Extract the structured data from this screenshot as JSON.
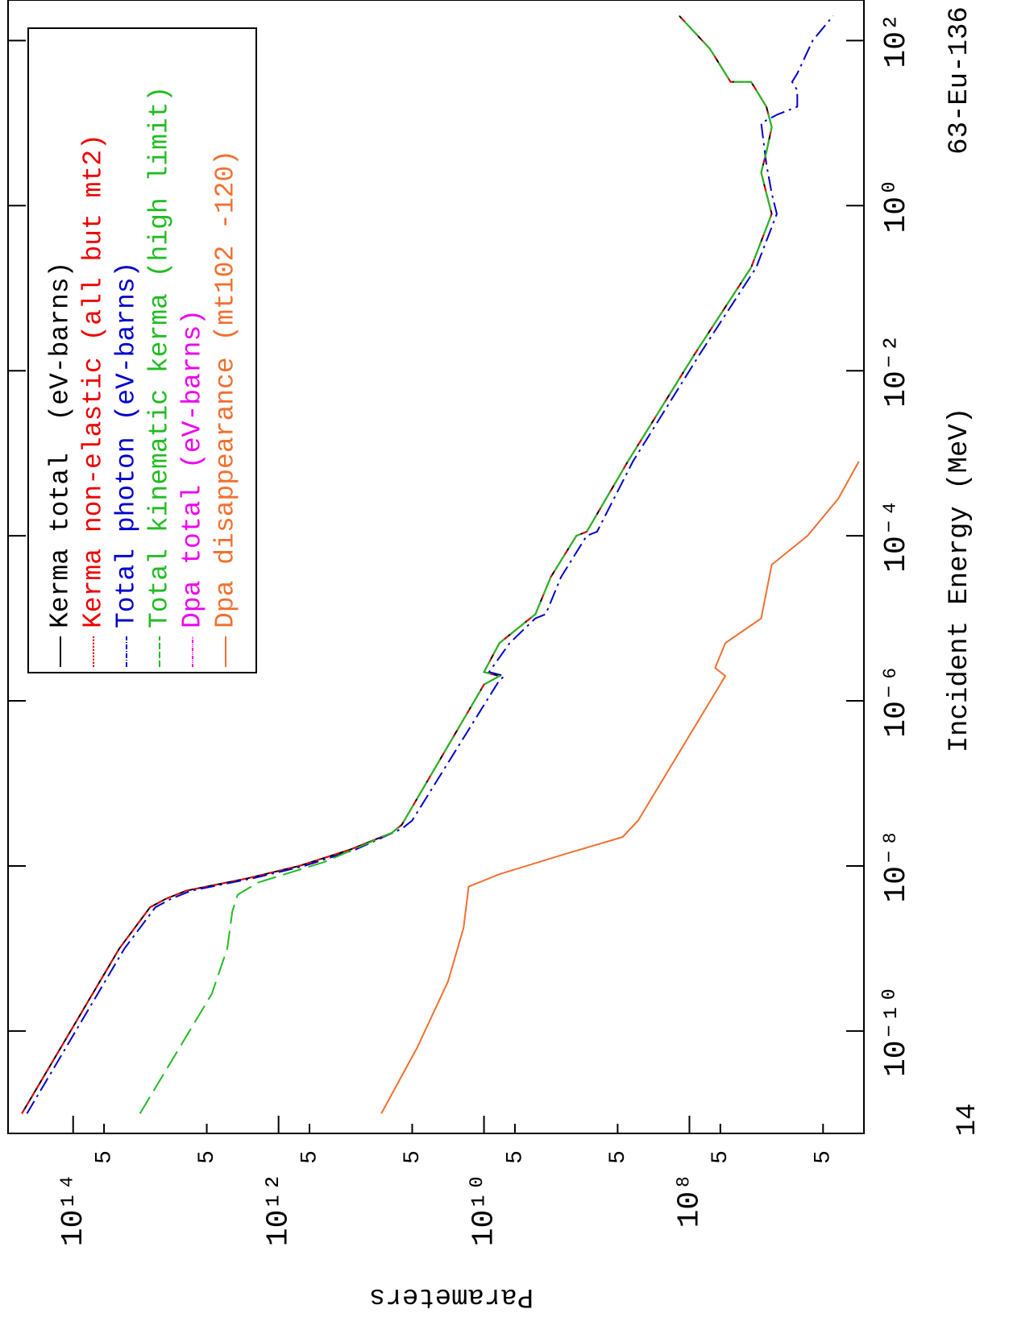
{
  "chart_data": {
    "type": "line",
    "xlabel": "Incident Energy (MeV)",
    "ylabel": "Parameters",
    "annotations": [
      "63-Eu-136",
      "14"
    ],
    "xscale": "log",
    "yscale": "log",
    "xlim": [
      5.75e-12,
      310
    ],
    "ylim": [
      2000000.0,
      430000000000000.0
    ],
    "xticks": [
      {
        "value": 100,
        "label": "10²"
      },
      {
        "value": 1,
        "label": "10⁰"
      },
      {
        "value": 0.01,
        "label": "10⁻²"
      },
      {
        "value": 0.0001,
        "label": "10⁻⁴"
      },
      {
        "value": 1e-06,
        "label": "10⁻⁶"
      },
      {
        "value": 1e-08,
        "label": "10⁻⁸"
      },
      {
        "value": 1e-10,
        "label": "10⁻¹⁰"
      }
    ],
    "yticks": [
      {
        "value": 100000000000000.0,
        "label": "10¹⁴"
      },
      {
        "value": 50000000000000.0,
        "label": "5"
      },
      {
        "value": 5000000000000.0,
        "label": "5"
      },
      {
        "value": 1000000000000.0,
        "label": "10¹²"
      },
      {
        "value": 500000000000.0,
        "label": "5"
      },
      {
        "value": 50000000000.0,
        "label": "5"
      },
      {
        "value": 10000000000.0,
        "label": "10¹⁰"
      },
      {
        "value": 5000000000.0,
        "label": "5"
      },
      {
        "value": 500000000.0,
        "label": "5"
      },
      {
        "value": 100000000.0,
        "label": "10⁸"
      },
      {
        "value": 50000000.0,
        "label": "5"
      },
      {
        "value": 5000000.0,
        "label": "5"
      }
    ],
    "legend": "upper right",
    "series": [
      {
        "name": "Kerma total  (eV-barns)",
        "color": "#000000",
        "dash": "none",
        "x": [
          1e-11,
          1e-09,
          3.16e-09,
          3.98e-09,
          5.01e-09,
          7.08e-09,
          1e-08,
          1.58e-08,
          2.51e-08,
          3.16e-08,
          1.58e-06,
          2e-06,
          2.24e-06,
          5.01e-06,
          1e-05,
          1.12e-05,
          3.16e-05,
          0.0001,
          0.000112,
          0.000794,
          0.0158,
          0.178,
          0.794,
          1.41,
          2.51,
          4.47,
          8.91,
          15.8,
          31.6,
          31.6,
          79.4,
          200
        ],
        "values": [
          316000000000000.0,
          35500000000000.0,
          17800000000000.0,
          12600000000000.0,
          7940000000000.0,
          2000000000000.0,
          631000000000.0,
          200000000000.0,
          79400000000.0,
          63100000000.0,
          10000000000.0,
          7080000000.0,
          10000000000.0,
          7080000000.0,
          3550000000.0,
          3160000000.0,
          2240000000.0,
          1260000000.0,
          1000000000.0,
          398000000.0,
          89100000.0,
          25100000.0,
          15800000.0,
          17800000.0,
          20000000.0,
          17800000.0,
          15800000.0,
          17800000.0,
          25100000.0,
          39800000.0,
          63100000.0,
          126000000.0
        ]
      },
      {
        "name": "Kerma non-elastic (all but mt2)",
        "color": "#ee0000",
        "dash": "7,5",
        "x": [
          1e-11,
          1e-09,
          3.16e-09,
          3.98e-09,
          5.01e-09,
          7.08e-09,
          1e-08,
          1.58e-08,
          2.51e-08,
          3.16e-08,
          1.58e-06,
          2e-06,
          2.24e-06,
          5.01e-06,
          1e-05,
          1.12e-05,
          3.16e-05,
          0.0001,
          0.000112,
          0.000794,
          0.0158,
          0.178,
          0.794,
          1.41,
          2.51,
          4.47,
          8.91,
          15.8,
          31.6,
          31.6,
          79.4,
          200
        ],
        "values": [
          316000000000000.0,
          35500000000000.0,
          17800000000000.0,
          12600000000000.0,
          7940000000000.0,
          2000000000000.0,
          631000000000.0,
          200000000000.0,
          79400000000.0,
          63100000000.0,
          10000000000.0,
          7080000000.0,
          10000000000.0,
          7080000000.0,
          3550000000.0,
          3160000000.0,
          2240000000.0,
          1260000000.0,
          1000000000.0,
          398000000.0,
          89100000.0,
          25100000.0,
          15800000.0,
          17800000.0,
          20000000.0,
          17800000.0,
          15800000.0,
          17800000.0,
          25100000.0,
          39800000.0,
          63100000.0,
          126000000.0
        ]
      },
      {
        "name": "Total photon (eV-barns)",
        "color": "#0000cc",
        "dash": "18,6,3,6",
        "x": [
          1e-11,
          1e-09,
          3.16e-09,
          3.98e-09,
          5.01e-09,
          7.08e-09,
          1e-08,
          1.58e-08,
          2.82e-08,
          3.55e-08,
          1.78e-06,
          2e-06,
          2.24e-06,
          5.01e-06,
          1e-05,
          1.12e-05,
          3.16e-05,
          0.0001,
          0.000112,
          0.000794,
          0.0158,
          0.178,
          0.794,
          1.41,
          3.16,
          10,
          12.6,
          15.8,
          25.1,
          31.6,
          39.8,
          100,
          200
        ],
        "values": [
          282000000000000.0,
          31600000000000.0,
          15800000000000.0,
          11200000000000.0,
          7080000000000.0,
          1780000000000.0,
          562000000000.0,
          178000000000.0,
          63100000000.0,
          50100000000.0,
          7080000000.0,
          6310000000.0,
          8910000000.0,
          5620000000.0,
          3160000000.0,
          2510000000.0,
          1780000000.0,
          1000000000.0,
          794000000.0,
          355000000.0,
          79400000.0,
          22400000.0,
          14100000.0,
          15800000.0,
          17800000.0,
          20000000.0,
          14100000.0,
          8910000.0,
          8910000.0,
          10000000.0,
          8910000.0,
          6310000.0,
          3980000.0
        ]
      },
      {
        "name": "Total kinematic kerma (high limit)",
        "color": "#22bb22",
        "dash": "24,9",
        "x": [
          1e-11,
          2.82e-10,
          1e-09,
          2.82e-09,
          4.47e-09,
          6.31e-09,
          1.12e-08,
          2.51e-08,
          3.16e-08,
          1.58e-06,
          2e-06,
          2.24e-06,
          5.01e-06,
          1e-05,
          1.12e-05,
          3.16e-05,
          0.0001,
          0.000112,
          0.000794,
          0.0158,
          0.178,
          0.794,
          1.41,
          2.51,
          4.47,
          8.91,
          15.8,
          31.6,
          31.6,
          79.4,
          200
        ],
        "values": [
          22400000000000.0,
          4470000000000.0,
          3160000000000.0,
          2820000000000.0,
          2510000000000.0,
          1580000000000.0,
          355000000000.0,
          79400000000.0,
          63100000000.0,
          10000000000.0,
          7080000000.0,
          10000000000.0,
          7080000000.0,
          3550000000.0,
          3160000000.0,
          2240000000.0,
          1260000000.0,
          1000000000.0,
          398000000.0,
          89100000.0,
          25100000.0,
          15800000.0,
          17800000.0,
          20000000.0,
          17800000.0,
          15800000.0,
          17800000.0,
          25100000.0,
          39800000.0,
          63100000.0,
          126000000.0
        ]
      },
      {
        "name": "Dpa total (eV-barns)",
        "color": "#ee00ee",
        "dash": "12,4,3,4,3,4",
        "x": [],
        "values": []
      },
      {
        "name": "Dpa disappearance (mt102 -120)",
        "color": "#f07030",
        "dash": "none",
        "x": [
          1e-11,
          6.31e-11,
          3.98e-10,
          1.78e-09,
          5.62e-09,
          7.94e-09,
          1.41e-08,
          2.24e-08,
          3.55e-08,
          2e-06,
          2.51e-06,
          5.01e-06,
          1e-05,
          4.47e-05,
          0.0001,
          0.000282,
          0.000794
        ],
        "values": [
          100000000000.0,
          44700000000.0,
          22400000000.0,
          15800000000.0,
          14100000000.0,
          7080000000.0,
          1580000000.0,
          447000000.0,
          316000000.0,
          44700000.0,
          56200000.0,
          44700000.0,
          20000000.0,
          15800000.0,
          7080000.0,
          3550000.0,
          2240000.0
        ]
      }
    ]
  }
}
